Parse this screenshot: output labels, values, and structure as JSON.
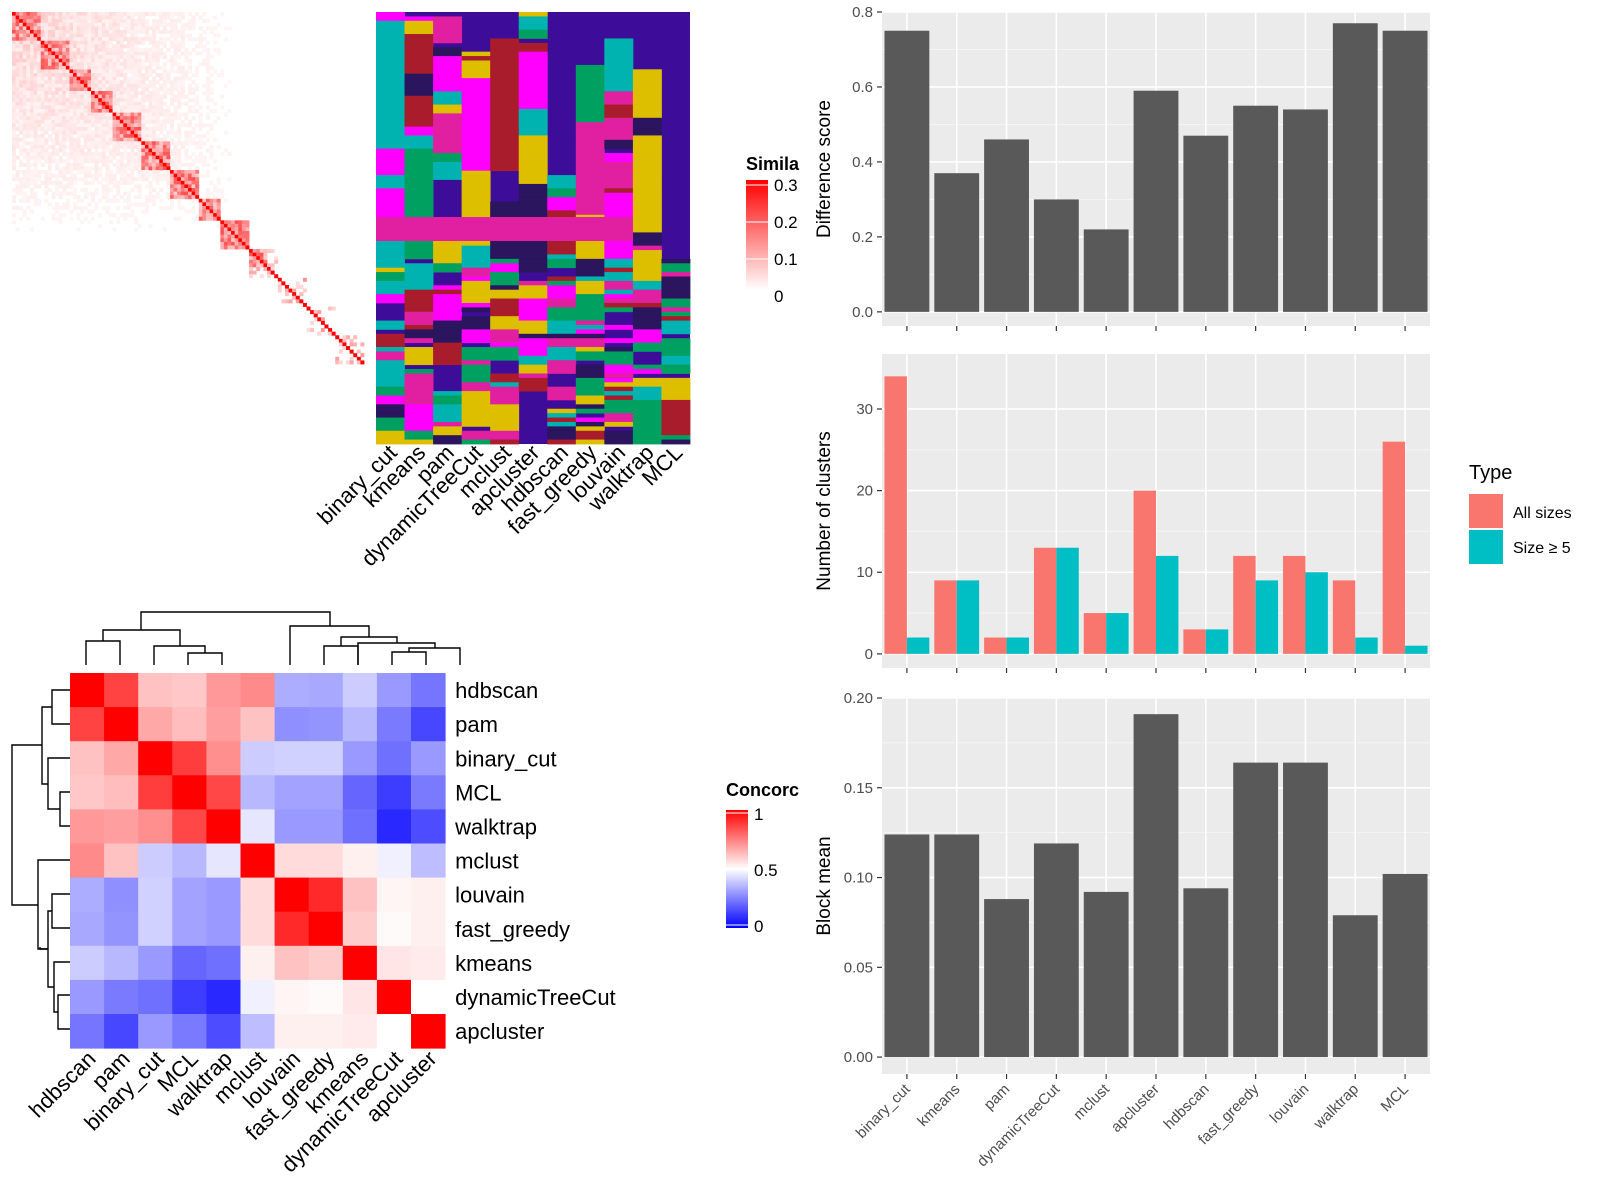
{
  "similarity_panel": {
    "legend_title": "Simila",
    "legend_ticks": [
      "0.3",
      "0.2",
      "0.1",
      "0"
    ],
    "legend_colors": {
      "high": "#ff0000",
      "low": "#ffffff"
    },
    "method_labels": [
      "binary_cut",
      "kmeans",
      "pam",
      "dynamicTreeCut",
      "mclust",
      "apcluster",
      "hdbscan",
      "fast_greedy",
      "louvain",
      "walktrap",
      "MCL"
    ],
    "cluster_palette": [
      "#3d0d99",
      "#e020a0",
      "#00a060",
      "#ddbf00",
      "#00b3b0",
      "#a81c2c",
      "#ff00ff",
      "#2a155e"
    ]
  },
  "concordance_panel": {
    "legend_title": "Concorc",
    "legend_ticks": [
      "1",
      "0.5",
      "0"
    ],
    "legend_colors": {
      "high": "#ff0000",
      "mid": "#ffffff",
      "low": "#0000ff"
    }
  },
  "chart_data": [
    {
      "type": "heatmap",
      "title": "",
      "legend_title": "Concorc",
      "row_labels": [
        "hdbscan",
        "pam",
        "binary_cut",
        "MCL",
        "walktrap",
        "mclust",
        "louvain",
        "fast_greedy",
        "kmeans",
        "dynamicTreeCut",
        "apcluster"
      ],
      "col_labels": [
        "hdbscan",
        "pam",
        "binary_cut",
        "MCL",
        "walktrap",
        "mclust",
        "louvain",
        "fast_greedy",
        "kmeans",
        "dynamicTreeCut",
        "apcluster"
      ],
      "values": [
        [
          1.0,
          0.87,
          0.62,
          0.61,
          0.7,
          0.73,
          0.34,
          0.33,
          0.4,
          0.3,
          0.23
        ],
        [
          0.87,
          1.0,
          0.67,
          0.63,
          0.69,
          0.62,
          0.28,
          0.29,
          0.36,
          0.24,
          0.14
        ],
        [
          0.62,
          0.67,
          1.0,
          0.88,
          0.72,
          0.4,
          0.41,
          0.41,
          0.3,
          0.22,
          0.3
        ],
        [
          0.61,
          0.63,
          0.88,
          1.0,
          0.86,
          0.36,
          0.32,
          0.32,
          0.2,
          0.12,
          0.24
        ],
        [
          0.7,
          0.69,
          0.72,
          0.86,
          1.0,
          0.45,
          0.3,
          0.3,
          0.22,
          0.08,
          0.15
        ],
        [
          0.73,
          0.62,
          0.4,
          0.36,
          0.45,
          1.0,
          0.57,
          0.57,
          0.53,
          0.47,
          0.37
        ],
        [
          0.34,
          0.28,
          0.41,
          0.32,
          0.3,
          0.57,
          1.0,
          0.92,
          0.62,
          0.52,
          0.53
        ],
        [
          0.33,
          0.29,
          0.41,
          0.32,
          0.3,
          0.57,
          0.92,
          1.0,
          0.6,
          0.51,
          0.53
        ],
        [
          0.4,
          0.36,
          0.3,
          0.2,
          0.22,
          0.53,
          0.62,
          0.6,
          1.0,
          0.55,
          0.54
        ],
        [
          0.3,
          0.24,
          0.22,
          0.12,
          0.08,
          0.47,
          0.52,
          0.51,
          0.55,
          1.0,
          0.5
        ],
        [
          0.23,
          0.14,
          0.3,
          0.24,
          0.15,
          0.37,
          0.53,
          0.53,
          0.54,
          0.5,
          1.0
        ]
      ],
      "range": [
        0,
        1
      ]
    },
    {
      "type": "bar",
      "title": "",
      "xlabel": "",
      "ylabel": "Difference score",
      "categories": [
        "binary_cut",
        "kmeans",
        "pam",
        "dynamicTreeCut",
        "mclust",
        "apcluster",
        "hdbscan",
        "fast_greedy",
        "louvain",
        "walktrap",
        "MCL"
      ],
      "values": [
        0.75,
        0.37,
        0.46,
        0.3,
        0.22,
        0.59,
        0.47,
        0.55,
        0.54,
        0.77,
        0.75
      ],
      "ylim": [
        0,
        0.8
      ],
      "yticks": [
        "0.0",
        "0.2",
        "0.4",
        "0.6",
        "0.8"
      ],
      "bar_color": "#595959"
    },
    {
      "type": "bar",
      "title": "",
      "xlabel": "",
      "ylabel": "Number of clusters",
      "categories": [
        "binary_cut",
        "kmeans",
        "pam",
        "dynamicTreeCut",
        "mclust",
        "apcluster",
        "hdbscan",
        "fast_greedy",
        "louvain",
        "walktrap",
        "MCL"
      ],
      "series": [
        {
          "name": "All sizes",
          "color": "#f8766d",
          "values": [
            34,
            9,
            2,
            13,
            5,
            20,
            3,
            12,
            12,
            9,
            26
          ]
        },
        {
          "name": "Size ≥ 5",
          "color": "#00bfc4",
          "values": [
            2,
            9,
            2,
            13,
            5,
            12,
            3,
            9,
            10,
            2,
            1
          ]
        }
      ],
      "ylim": [
        0,
        36
      ],
      "yticks": [
        "0",
        "10",
        "20",
        "30"
      ],
      "legend_title": "Type",
      "legend_position": "right"
    },
    {
      "type": "bar",
      "title": "",
      "xlabel": "",
      "ylabel": "Block mean",
      "categories": [
        "binary_cut",
        "kmeans",
        "pam",
        "dynamicTreeCut",
        "mclust",
        "apcluster",
        "hdbscan",
        "fast_greedy",
        "louvain",
        "walktrap",
        "MCL"
      ],
      "values": [
        0.124,
        0.124,
        0.088,
        0.119,
        0.092,
        0.191,
        0.094,
        0.164,
        0.164,
        0.079,
        0.102
      ],
      "ylim": [
        0,
        0.2
      ],
      "yticks": [
        "0.00",
        "0.05",
        "0.10",
        "0.15",
        "0.20"
      ],
      "bar_color": "#595959"
    }
  ]
}
